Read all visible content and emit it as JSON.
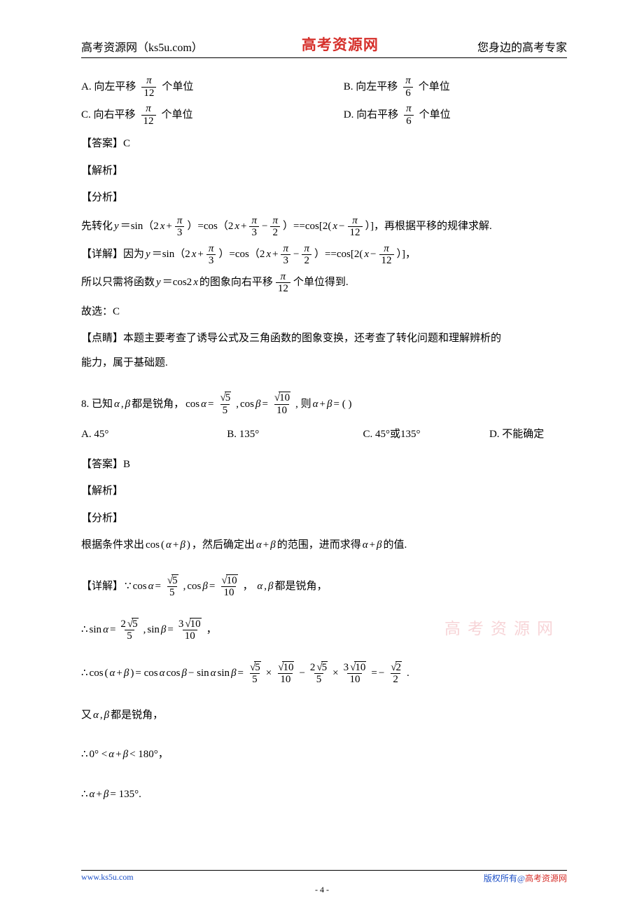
{
  "header": {
    "left": "高考资源网（ks5u.com）",
    "center": "高考资源网",
    "right": "您身边的高考专家"
  },
  "q7": {
    "optA_prefix": "A.  向左平移",
    "optA_suffix": "个单位",
    "optB_prefix": "B.  向左平移",
    "optB_suffix": "个单位",
    "optC_prefix": "C.  向右平移",
    "optC_suffix": "个单位",
    "optD_prefix": "D.  向右平移",
    "optD_suffix": "个单位",
    "frac_pi": "π",
    "frac_12": "12",
    "frac_6": "6",
    "answer_label": "【答案】C",
    "jiexi_label": "【解析】",
    "fenxi_label": "【分析】",
    "fenxi_pre": "先转化 ",
    "fenxi_y": "y",
    "fenxi_eq1": "＝sin（2",
    "fenxi_x": "x",
    "fenxi_plus": "+",
    "fenxi_close1": "）=cos（2",
    "fenxi_minus": "−",
    "frac_3": "3",
    "frac_2": "2",
    "fenxi_close2": "）==cos[2(",
    "fenxi_close3": "）]，再根据平移的规律求解.",
    "xiangjie_label": "【详解】因为 ",
    "xiangjie_end": "）]，",
    "suoyi": "所以只需将函数 ",
    "suoyi_mid": "＝cos2",
    "suoyi_tail": " 的图象向右平移",
    "suoyi_end": "个单位得到.",
    "guxuan": "故选：C",
    "dianjing_label": "【点睛】本题主要考查了诱导公式及三角函数的图象变换，还考查了转化问题和理解辨析的",
    "dianjing_line2": "能力，属于基础题."
  },
  "q8": {
    "stem_pre": "8. 已知",
    "alpha": "α",
    "beta": "β",
    "stem_mid1": ",",
    "stem_mid2": "都是锐角，",
    "cos": "cos",
    "eq": " = ",
    "sqrt5": "5",
    "sqrt10": "10",
    "den5": "5",
    "den10": "10",
    "stem_comma": ", ",
    "stem_then": ", 则",
    "plus": " + ",
    "stem_q": " = (    )",
    "optA": "A.  45°",
    "optB": "B.  135°",
    "optC": "C.  45°或135°",
    "optD": "D.  不能确定",
    "answer_label": "【答案】B",
    "jiexi_label": "【解析】",
    "fenxi_label": "【分析】",
    "fenxi_text1": "根据条件求出",
    "fenxi_text2": "，然后确定出",
    "fenxi_text3": "的范围，进而求得",
    "fenxi_text4": "的值.",
    "xj_label": "【详解】",
    "xj_tail": "都是锐角，",
    "sin": "sin",
    "num_2sqrt5": "2",
    "num_3sqrt10": "3",
    "line4_mid": " = cos",
    "line4_mid2": "cos",
    "line4_minus": " − sin",
    "line4_mid3": "sin",
    "times": "×",
    "sqrt2": "2",
    "den2": "2",
    "neg": "−",
    "dot": " .",
    "you": "又",
    "you_tail": "都是锐角，",
    "range1": "0° < ",
    "range2": " < 180°，",
    "final": " = 135°."
  },
  "watermark": "高考资源网",
  "footer": {
    "left": "www.ks5u.com",
    "right_prefix": "版权所有@",
    "right_red": "高考资源网",
    "page": "- 4 -"
  }
}
